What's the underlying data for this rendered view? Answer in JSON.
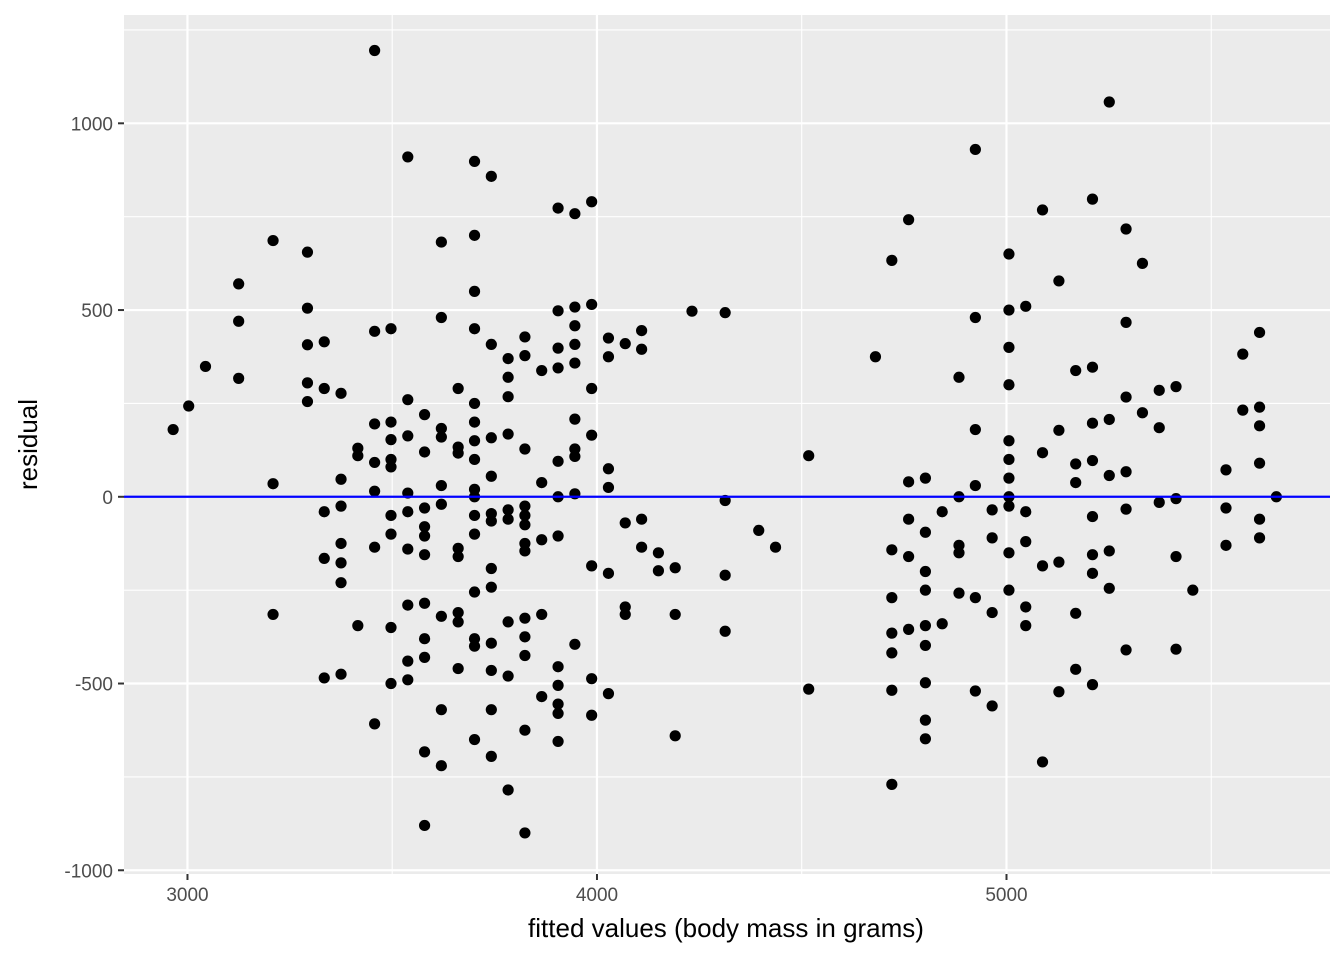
{
  "chart_data": {
    "type": "scatter",
    "title": "",
    "xlabel": "fitted values (body mass in grams)",
    "ylabel": "residual",
    "xlim": [
      2845,
      5790
    ],
    "ylim": [
      -1010,
      1290
    ],
    "x_ticks": [
      3000,
      4000,
      5000
    ],
    "y_ticks": [
      -1000,
      -500,
      0,
      500,
      1000
    ],
    "x_tick_labels": [
      "3000",
      "4000",
      "5000"
    ],
    "y_tick_labels": [
      "-1000",
      "-500",
      "0",
      "500",
      "1000"
    ],
    "grid": true,
    "legend": "none",
    "reference_line": {
      "y": 0,
      "color": "#0000FF"
    },
    "colors": {
      "panel": "#EBEBEB",
      "grid": "#FFFFFF",
      "point": "#000000",
      "line": "#0000FF",
      "tick_text": "#4D4D4D"
    },
    "points": [
      [
        2965,
        180
      ],
      [
        3003,
        243
      ],
      [
        3044,
        349
      ],
      [
        3125,
        570
      ],
      [
        3125,
        470
      ],
      [
        3125,
        317
      ],
      [
        3209,
        686
      ],
      [
        3209,
        35
      ],
      [
        3209,
        -315
      ],
      [
        3293,
        655
      ],
      [
        3293,
        505
      ],
      [
        3293,
        407
      ],
      [
        3293,
        305
      ],
      [
        3293,
        255
      ],
      [
        3334,
        415
      ],
      [
        3334,
        290
      ],
      [
        3334,
        -40
      ],
      [
        3334,
        -165
      ],
      [
        3334,
        -485
      ],
      [
        3375,
        277
      ],
      [
        3375,
        47
      ],
      [
        3375,
        -25
      ],
      [
        3375,
        -125
      ],
      [
        3375,
        -177
      ],
      [
        3375,
        -230
      ],
      [
        3375,
        -475
      ],
      [
        3416,
        130
      ],
      [
        3416,
        110
      ],
      [
        3416,
        -345
      ],
      [
        3457,
        1195
      ],
      [
        3457,
        443
      ],
      [
        3457,
        195
      ],
      [
        3457,
        92
      ],
      [
        3457,
        15
      ],
      [
        3457,
        -135
      ],
      [
        3457,
        -608
      ],
      [
        3497,
        450
      ],
      [
        3497,
        200
      ],
      [
        3497,
        153
      ],
      [
        3497,
        100
      ],
      [
        3497,
        80
      ],
      [
        3497,
        -50
      ],
      [
        3497,
        -100
      ],
      [
        3497,
        -350
      ],
      [
        3497,
        -500
      ],
      [
        3538,
        910
      ],
      [
        3538,
        260
      ],
      [
        3538,
        163
      ],
      [
        3538,
        10
      ],
      [
        3538,
        -40
      ],
      [
        3538,
        -140
      ],
      [
        3538,
        -290
      ],
      [
        3538,
        -440
      ],
      [
        3538,
        -490
      ],
      [
        3579,
        220
      ],
      [
        3579,
        120
      ],
      [
        3579,
        -30
      ],
      [
        3579,
        -80
      ],
      [
        3579,
        -105
      ],
      [
        3579,
        -155
      ],
      [
        3579,
        -285
      ],
      [
        3579,
        -380
      ],
      [
        3579,
        -430
      ],
      [
        3579,
        -683
      ],
      [
        3579,
        -880
      ],
      [
        3620,
        682
      ],
      [
        3620,
        480
      ],
      [
        3620,
        183
      ],
      [
        3620,
        160
      ],
      [
        3620,
        30
      ],
      [
        3620,
        -20
      ],
      [
        3620,
        -320
      ],
      [
        3620,
        -570
      ],
      [
        3620,
        -720
      ],
      [
        3661,
        290
      ],
      [
        3661,
        133
      ],
      [
        3661,
        117
      ],
      [
        3661,
        -138
      ],
      [
        3661,
        -160
      ],
      [
        3661,
        -310
      ],
      [
        3661,
        -335
      ],
      [
        3661,
        -460
      ],
      [
        3701,
        898
      ],
      [
        3701,
        700
      ],
      [
        3701,
        550
      ],
      [
        3701,
        450
      ],
      [
        3701,
        250
      ],
      [
        3701,
        200
      ],
      [
        3701,
        150
      ],
      [
        3701,
        100
      ],
      [
        3701,
        20
      ],
      [
        3701,
        0
      ],
      [
        3701,
        -50
      ],
      [
        3701,
        -100
      ],
      [
        3701,
        -255
      ],
      [
        3701,
        -380
      ],
      [
        3701,
        -400
      ],
      [
        3701,
        -650
      ],
      [
        3742,
        858
      ],
      [
        3742,
        408
      ],
      [
        3742,
        158
      ],
      [
        3742,
        55
      ],
      [
        3742,
        -45
      ],
      [
        3742,
        -65
      ],
      [
        3742,
        -192
      ],
      [
        3742,
        -242
      ],
      [
        3742,
        -392
      ],
      [
        3742,
        -465
      ],
      [
        3742,
        -570
      ],
      [
        3742,
        -695
      ],
      [
        3783,
        370
      ],
      [
        3783,
        320
      ],
      [
        3783,
        268
      ],
      [
        3783,
        168
      ],
      [
        3783,
        -35
      ],
      [
        3783,
        -60
      ],
      [
        3783,
        -335
      ],
      [
        3783,
        -480
      ],
      [
        3783,
        -785
      ],
      [
        3824,
        428
      ],
      [
        3824,
        378
      ],
      [
        3824,
        128
      ],
      [
        3824,
        -25
      ],
      [
        3824,
        -50
      ],
      [
        3824,
        -75
      ],
      [
        3824,
        -125
      ],
      [
        3824,
        -145
      ],
      [
        3824,
        -325
      ],
      [
        3824,
        -375
      ],
      [
        3824,
        -425
      ],
      [
        3824,
        -625
      ],
      [
        3824,
        -900
      ],
      [
        3865,
        338
      ],
      [
        3865,
        38
      ],
      [
        3865,
        -115
      ],
      [
        3865,
        -315
      ],
      [
        3865,
        -535
      ],
      [
        3905,
        773
      ],
      [
        3905,
        498
      ],
      [
        3905,
        398
      ],
      [
        3905,
        345
      ],
      [
        3905,
        95
      ],
      [
        3905,
        0
      ],
      [
        3905,
        -105
      ],
      [
        3905,
        -455
      ],
      [
        3905,
        -505
      ],
      [
        3905,
        -555
      ],
      [
        3905,
        -580
      ],
      [
        3905,
        -655
      ],
      [
        3946,
        758
      ],
      [
        3946,
        508
      ],
      [
        3946,
        458
      ],
      [
        3946,
        408
      ],
      [
        3946,
        358
      ],
      [
        3946,
        208
      ],
      [
        3946,
        128
      ],
      [
        3946,
        108
      ],
      [
        3946,
        8
      ],
      [
        3946,
        -395
      ],
      [
        3987,
        790
      ],
      [
        3987,
        515
      ],
      [
        3987,
        290
      ],
      [
        3987,
        165
      ],
      [
        3987,
        -185
      ],
      [
        3987,
        -487
      ],
      [
        3987,
        -585
      ],
      [
        4028,
        425
      ],
      [
        4028,
        375
      ],
      [
        4028,
        75
      ],
      [
        4028,
        25
      ],
      [
        4028,
        -205
      ],
      [
        4028,
        -527
      ],
      [
        4069,
        410
      ],
      [
        4069,
        -70
      ],
      [
        4069,
        -295
      ],
      [
        4069,
        -315
      ],
      [
        4109,
        445
      ],
      [
        4109,
        395
      ],
      [
        4109,
        -60
      ],
      [
        4109,
        -135
      ],
      [
        4150,
        -150
      ],
      [
        4150,
        -198
      ],
      [
        4191,
        -190
      ],
      [
        4191,
        -315
      ],
      [
        4191,
        -640
      ],
      [
        4232,
        497
      ],
      [
        4313,
        493
      ],
      [
        4313,
        -10
      ],
      [
        4313,
        -210
      ],
      [
        4313,
        -360
      ],
      [
        4395,
        -90
      ],
      [
        4436,
        -135
      ],
      [
        4517,
        110
      ],
      [
        4517,
        -515
      ],
      [
        4680,
        375
      ],
      [
        4720,
        633
      ],
      [
        4720,
        -142
      ],
      [
        4720,
        -270
      ],
      [
        4720,
        -365
      ],
      [
        4720,
        -418
      ],
      [
        4720,
        -518
      ],
      [
        4720,
        -770
      ],
      [
        4761,
        742
      ],
      [
        4761,
        40
      ],
      [
        4761,
        -60
      ],
      [
        4761,
        -160
      ],
      [
        4761,
        -355
      ],
      [
        4802,
        50
      ],
      [
        4802,
        -95
      ],
      [
        4802,
        -200
      ],
      [
        4802,
        -250
      ],
      [
        4802,
        -345
      ],
      [
        4802,
        -398
      ],
      [
        4802,
        -498
      ],
      [
        4802,
        -598
      ],
      [
        4802,
        -648
      ],
      [
        4843,
        -40
      ],
      [
        4843,
        -340
      ],
      [
        4884,
        320
      ],
      [
        4884,
        0
      ],
      [
        4884,
        -130
      ],
      [
        4884,
        -150
      ],
      [
        4884,
        -258
      ],
      [
        4924,
        930
      ],
      [
        4924,
        480
      ],
      [
        4924,
        180
      ],
      [
        4924,
        30
      ],
      [
        4924,
        -270
      ],
      [
        4924,
        -520
      ],
      [
        4965,
        -35
      ],
      [
        4965,
        -110
      ],
      [
        4965,
        -310
      ],
      [
        4965,
        -560
      ],
      [
        5006,
        650
      ],
      [
        5006,
        500
      ],
      [
        5006,
        400
      ],
      [
        5006,
        300
      ],
      [
        5006,
        150
      ],
      [
        5006,
        100
      ],
      [
        5006,
        50
      ],
      [
        5006,
        0
      ],
      [
        5006,
        -25
      ],
      [
        5006,
        -150
      ],
      [
        5006,
        -250
      ],
      [
        5047,
        510
      ],
      [
        5047,
        -40
      ],
      [
        5047,
        -120
      ],
      [
        5047,
        -295
      ],
      [
        5047,
        -345
      ],
      [
        5088,
        768
      ],
      [
        5088,
        118
      ],
      [
        5088,
        -185
      ],
      [
        5088,
        -710
      ],
      [
        5128,
        578
      ],
      [
        5128,
        178
      ],
      [
        5128,
        -175
      ],
      [
        5128,
        -522
      ],
      [
        5169,
        338
      ],
      [
        5169,
        88
      ],
      [
        5169,
        38
      ],
      [
        5169,
        -312
      ],
      [
        5169,
        -462
      ],
      [
        5210,
        797
      ],
      [
        5210,
        347
      ],
      [
        5210,
        197
      ],
      [
        5210,
        97
      ],
      [
        5210,
        -53
      ],
      [
        5210,
        -155
      ],
      [
        5210,
        -205
      ],
      [
        5210,
        -503
      ],
      [
        5251,
        1057
      ],
      [
        5251,
        207
      ],
      [
        5251,
        57
      ],
      [
        5251,
        -145
      ],
      [
        5251,
        -245
      ],
      [
        5292,
        717
      ],
      [
        5292,
        467
      ],
      [
        5292,
        267
      ],
      [
        5292,
        67
      ],
      [
        5292,
        -33
      ],
      [
        5292,
        -410
      ],
      [
        5332,
        625
      ],
      [
        5332,
        225
      ],
      [
        5373,
        285
      ],
      [
        5373,
        185
      ],
      [
        5373,
        -15
      ],
      [
        5414,
        295
      ],
      [
        5414,
        -5
      ],
      [
        5414,
        -160
      ],
      [
        5414,
        -408
      ],
      [
        5455,
        -250
      ],
      [
        5536,
        72
      ],
      [
        5536,
        -30
      ],
      [
        5536,
        -130
      ],
      [
        5577,
        382
      ],
      [
        5577,
        232
      ],
      [
        5618,
        440
      ],
      [
        5618,
        240
      ],
      [
        5618,
        190
      ],
      [
        5618,
        90
      ],
      [
        5618,
        -60
      ],
      [
        5618,
        -110
      ],
      [
        5659,
        0
      ]
    ]
  }
}
